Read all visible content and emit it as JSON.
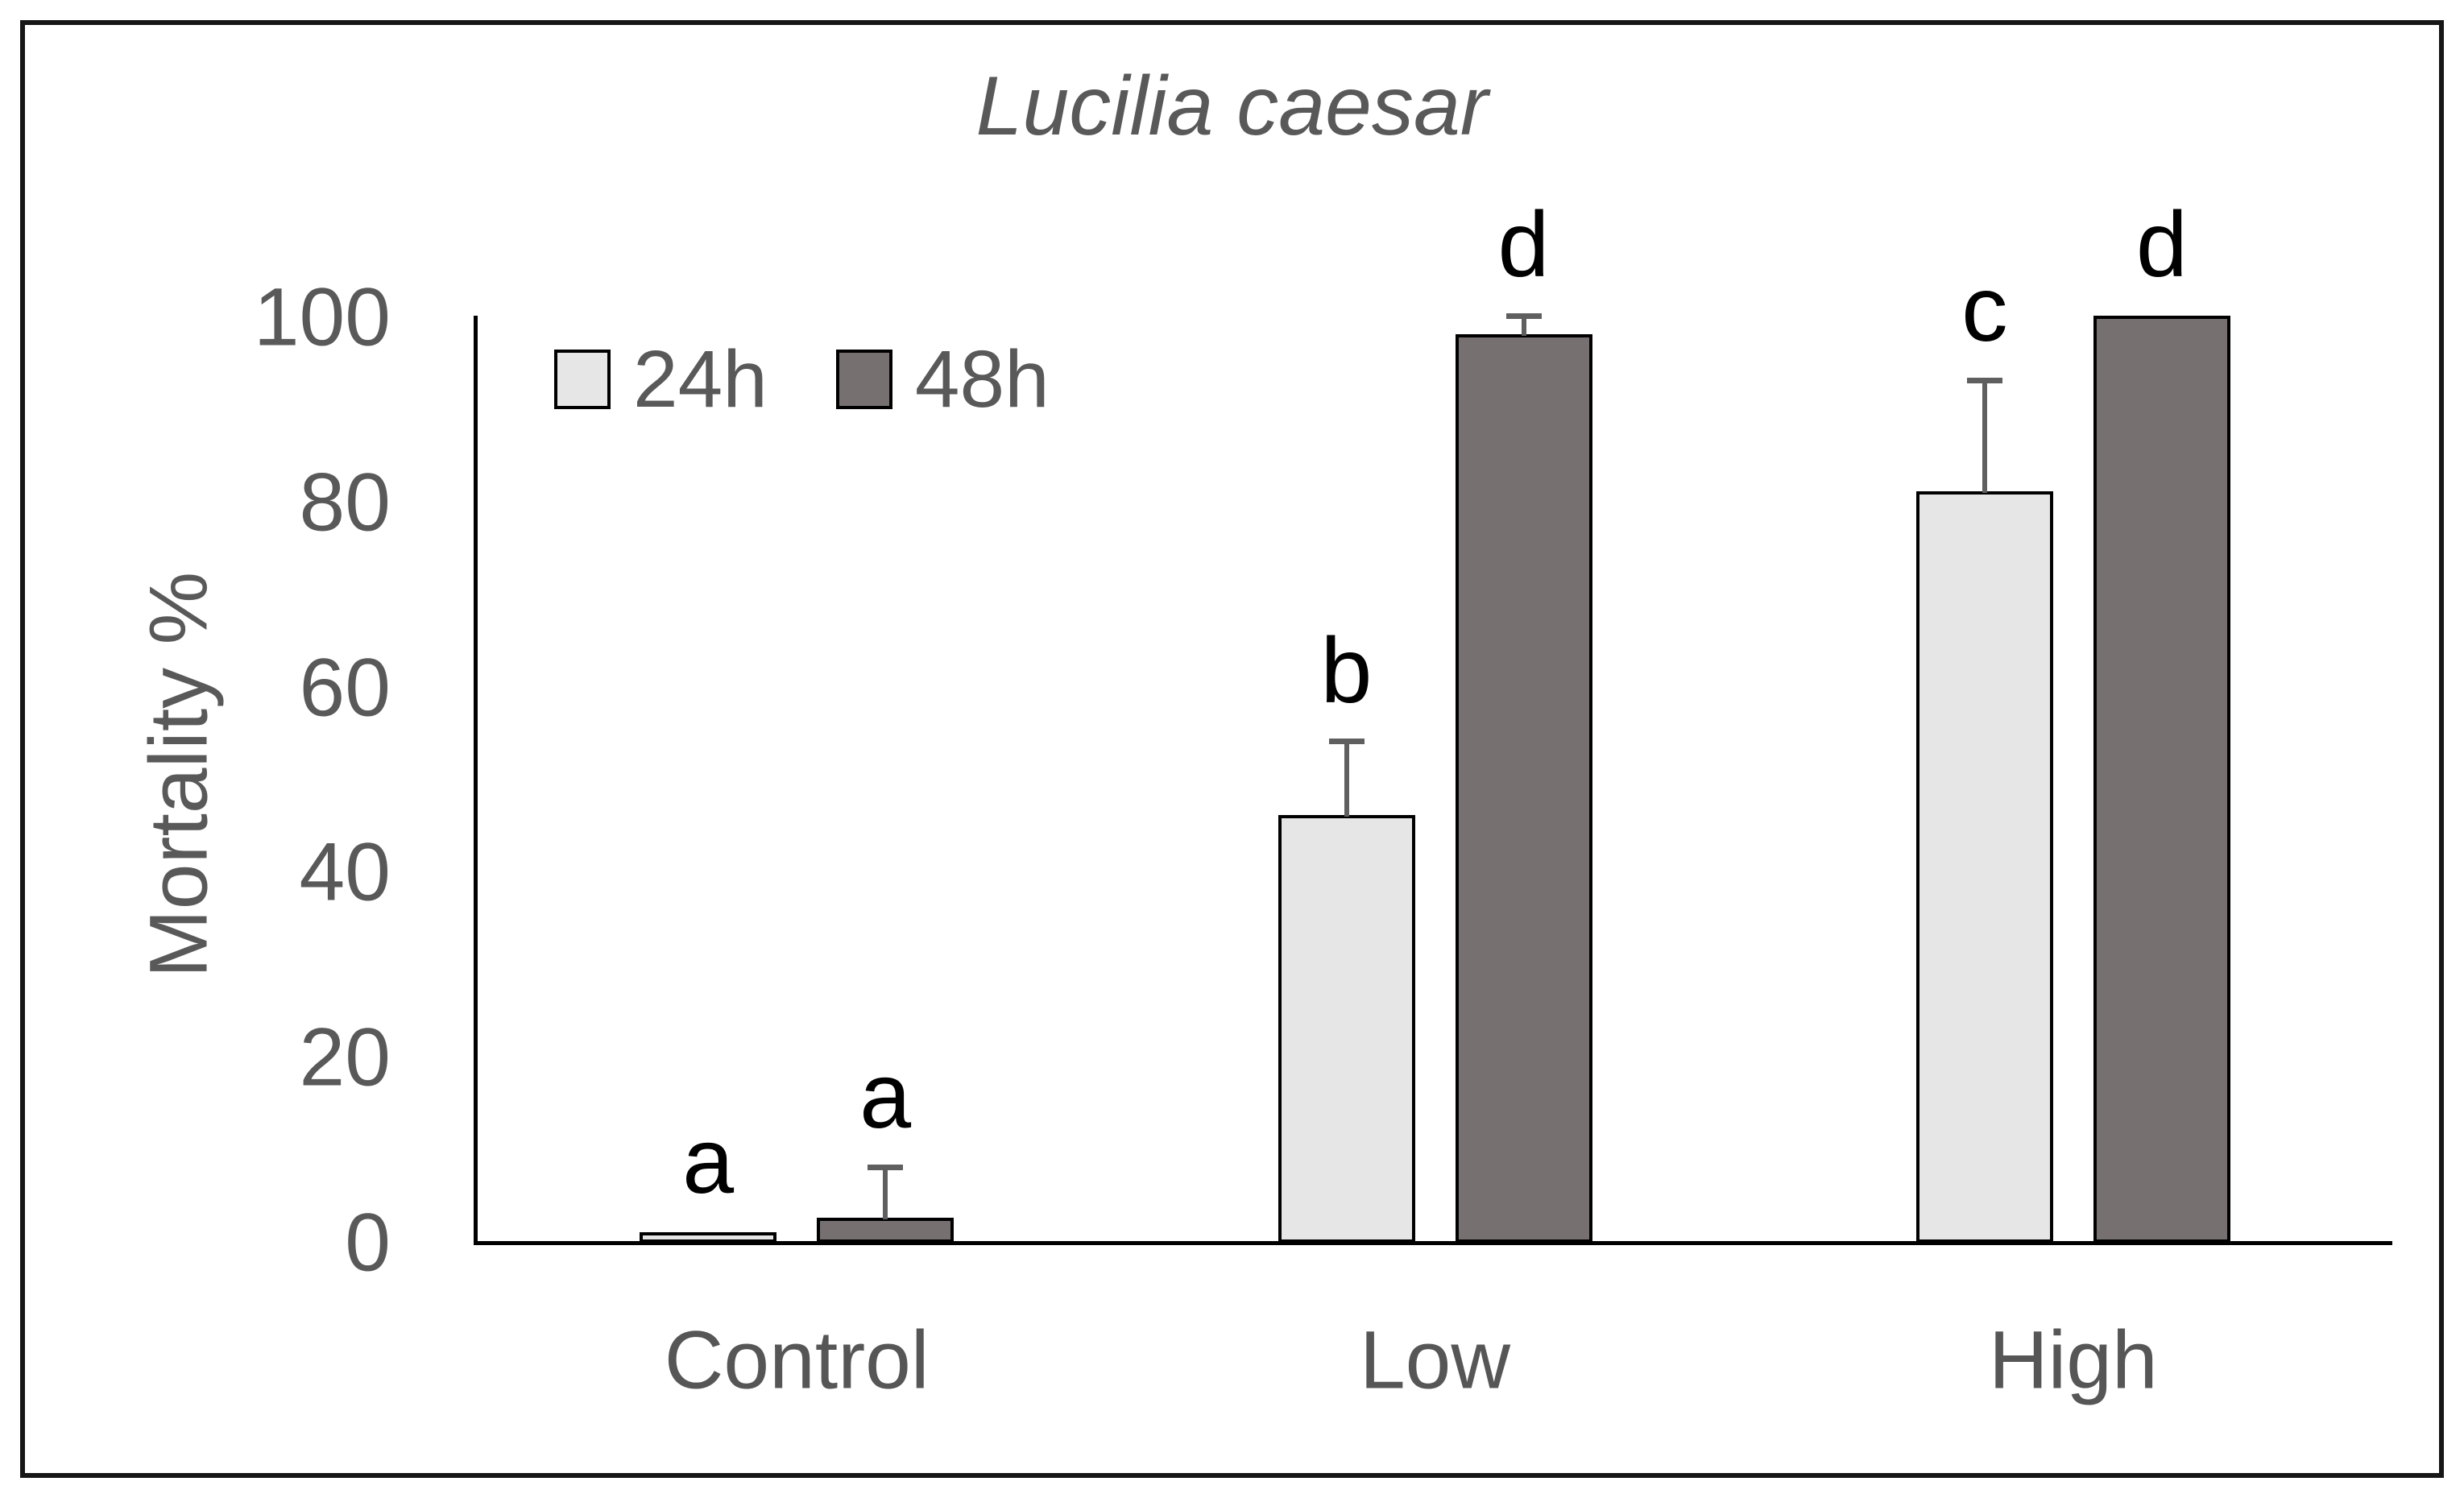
{
  "figure": {
    "title": "Lucilia caesar",
    "y_axis_label": "Mortality %",
    "x_categories": [
      "Control",
      "Low",
      "High"
    ],
    "legend_labels": [
      "24h",
      "48h"
    ],
    "colors": {
      "bar_fill_24h": "#e7e6e6",
      "bar_fill_48h": "#767071",
      "bar_border": "#000000",
      "axis_line": "#000000",
      "axis_text": "#595959",
      "error_bar": "#5f5f5f",
      "letter_text": "#000000",
      "frame_border": "#161616"
    }
  },
  "chart_data": {
    "type": "bar",
    "title": "Lucilia caesar",
    "ylabel": "Mortality %",
    "xlabel": "",
    "ylim": [
      0,
      100
    ],
    "yticks": [
      0,
      20,
      40,
      60,
      80,
      100
    ],
    "grid": false,
    "legend_position": "top-left-inside",
    "categories": [
      "Control",
      "Low",
      "High"
    ],
    "series": [
      {
        "name": "24h",
        "fill": "#e7e6e6",
        "values": [
          1,
          46,
          81
        ],
        "errors_plus": [
          0,
          8,
          12
        ],
        "letters": [
          "a",
          "b",
          "c"
        ]
      },
      {
        "name": "48h",
        "fill": "#767071",
        "values": [
          2.5,
          98,
          100
        ],
        "errors_plus": [
          5.5,
          2,
          0
        ],
        "letters": [
          "a",
          "d",
          "d"
        ]
      }
    ]
  }
}
